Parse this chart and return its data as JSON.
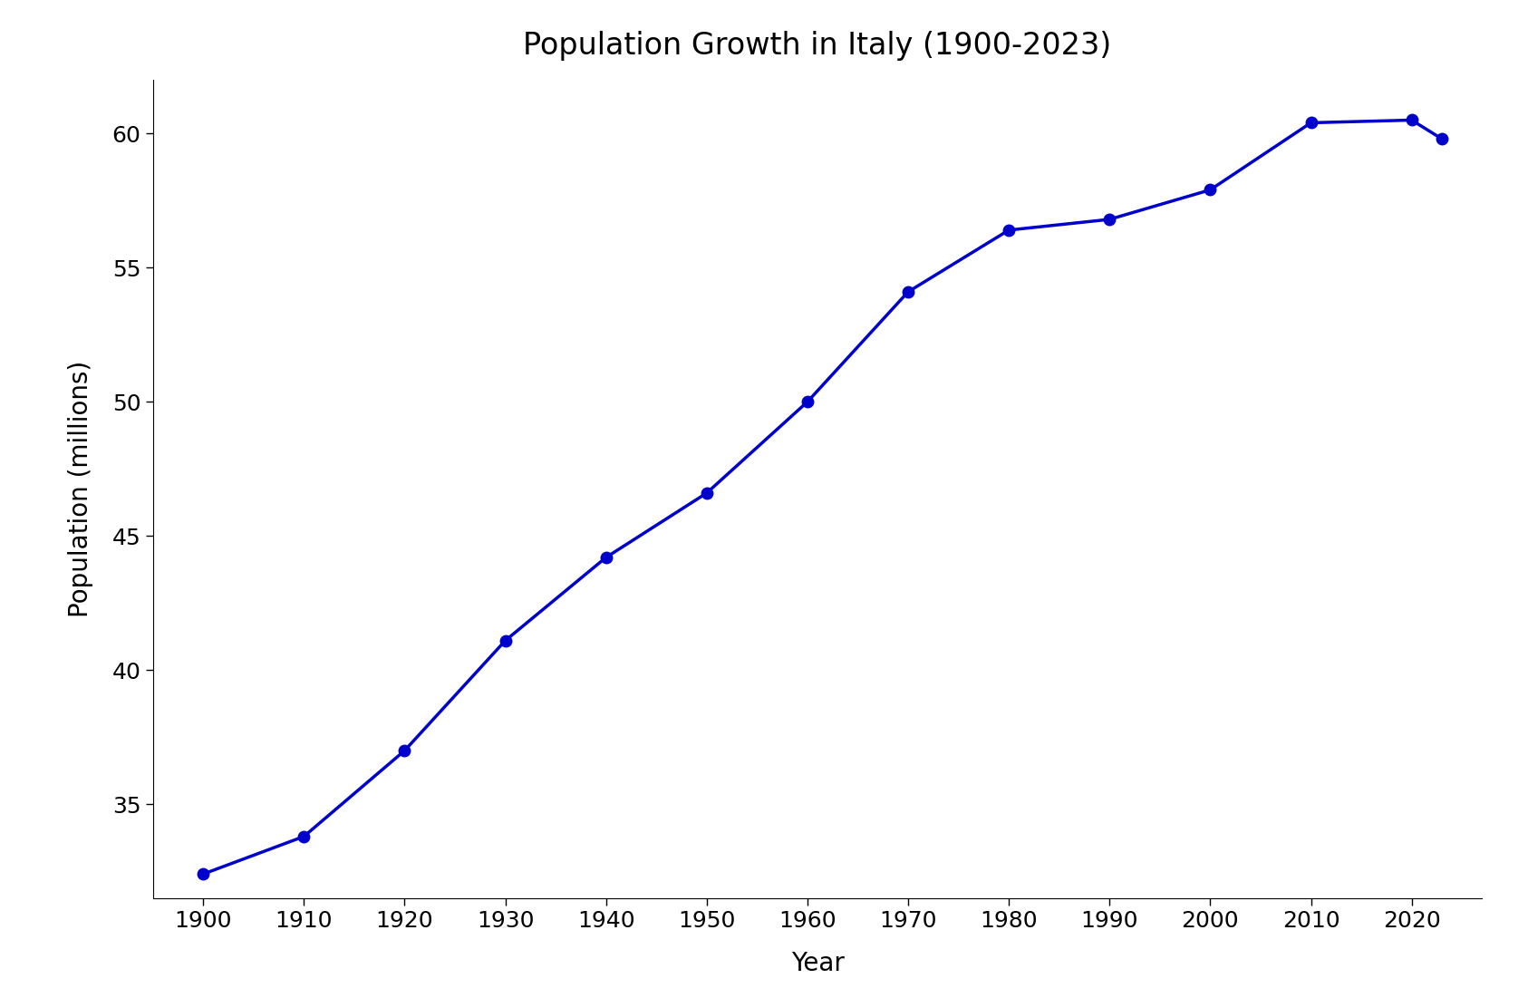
{
  "title": "Population Growth in Italy (1900-2023)",
  "xlabel": "Year",
  "ylabel": "Population (millions)",
  "years": [
    1900,
    1910,
    1920,
    1930,
    1940,
    1950,
    1960,
    1970,
    1980,
    1990,
    2000,
    2010,
    2020,
    2023
  ],
  "population": [
    32.4,
    33.8,
    37.0,
    41.1,
    44.2,
    46.6,
    50.0,
    54.1,
    56.4,
    56.8,
    57.9,
    60.4,
    60.5,
    59.8
  ],
  "line_color": "#0000CC",
  "marker_color": "#0000CC",
  "marker_style": "o",
  "marker_size": 9,
  "line_width": 2.5,
  "background_color": "#ffffff",
  "title_fontsize": 24,
  "label_fontsize": 20,
  "tick_fontsize": 18,
  "ylim": [
    31.5,
    62
  ],
  "yticks": [
    35,
    40,
    45,
    50,
    55,
    60
  ],
  "xticks": [
    1900,
    1910,
    1920,
    1930,
    1940,
    1950,
    1960,
    1970,
    1980,
    1990,
    2000,
    2010,
    2020
  ]
}
